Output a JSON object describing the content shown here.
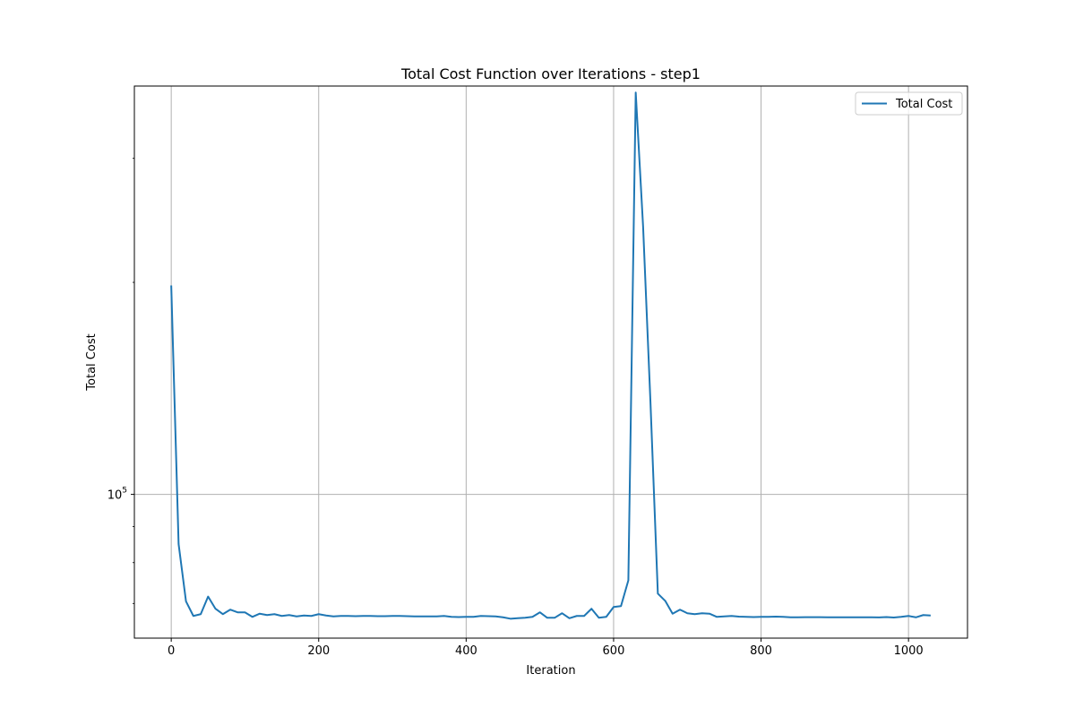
{
  "chart_data": {
    "type": "line",
    "title": "Total Cost Function over Iterations - step1",
    "xlabel": "Iteration",
    "ylabel": "Total Cost",
    "yscale": "log",
    "xlim": [
      -50,
      1080
    ],
    "ylim": [
      62500,
      380000
    ],
    "xticks": [
      0,
      200,
      400,
      600,
      800,
      1000
    ],
    "yticks": [
      {
        "value": 100000,
        "base": "10",
        "exp": "5"
      }
    ],
    "grid": true,
    "legend": "top-right",
    "series": [
      {
        "name": "Total Cost",
        "color": "#1f77b4",
        "x": [
          0,
          10,
          20,
          30,
          40,
          50,
          60,
          70,
          80,
          90,
          100,
          110,
          120,
          130,
          140,
          150,
          160,
          170,
          180,
          190,
          200,
          210,
          220,
          230,
          240,
          250,
          260,
          270,
          280,
          290,
          300,
          310,
          320,
          330,
          340,
          350,
          360,
          370,
          380,
          390,
          400,
          410,
          420,
          430,
          440,
          450,
          460,
          470,
          480,
          490,
          500,
          510,
          520,
          530,
          540,
          550,
          560,
          570,
          580,
          590,
          600,
          610,
          620,
          630,
          640,
          650,
          660,
          670,
          680,
          690,
          700,
          710,
          720,
          730,
          740,
          750,
          760,
          770,
          780,
          790,
          800,
          810,
          820,
          830,
          840,
          850,
          860,
          870,
          880,
          890,
          900,
          910,
          920,
          930,
          940,
          950,
          960,
          970,
          980,
          990,
          1000,
          1010,
          1020,
          1030
        ],
        "y": [
          198000,
          85000,
          70500,
          67200,
          67600,
          71600,
          68800,
          67600,
          68600,
          68000,
          68000,
          67000,
          67700,
          67400,
          67600,
          67200,
          67400,
          67100,
          67300,
          67200,
          67600,
          67300,
          67100,
          67200,
          67200,
          67150,
          67200,
          67200,
          67150,
          67150,
          67200,
          67200,
          67150,
          67100,
          67100,
          67100,
          67100,
          67200,
          67000,
          66950,
          67000,
          67000,
          67200,
          67150,
          67100,
          66900,
          66600,
          66700,
          66800,
          67000,
          68000,
          66800,
          66800,
          67800,
          66700,
          67200,
          67200,
          68800,
          66800,
          67000,
          69200,
          69400,
          75500,
          372000,
          240000,
          135000,
          72300,
          70600,
          67700,
          68600,
          67800,
          67600,
          67800,
          67700,
          67000,
          67100,
          67200,
          67050,
          67000,
          66950,
          67000,
          67000,
          67050,
          67000,
          66900,
          66900,
          66920,
          66930,
          66920,
          66900,
          66900,
          66900,
          66900,
          66900,
          66900,
          66900,
          66880,
          66950,
          66850,
          67000,
          67200,
          66900,
          67400,
          67300
        ]
      }
    ]
  }
}
